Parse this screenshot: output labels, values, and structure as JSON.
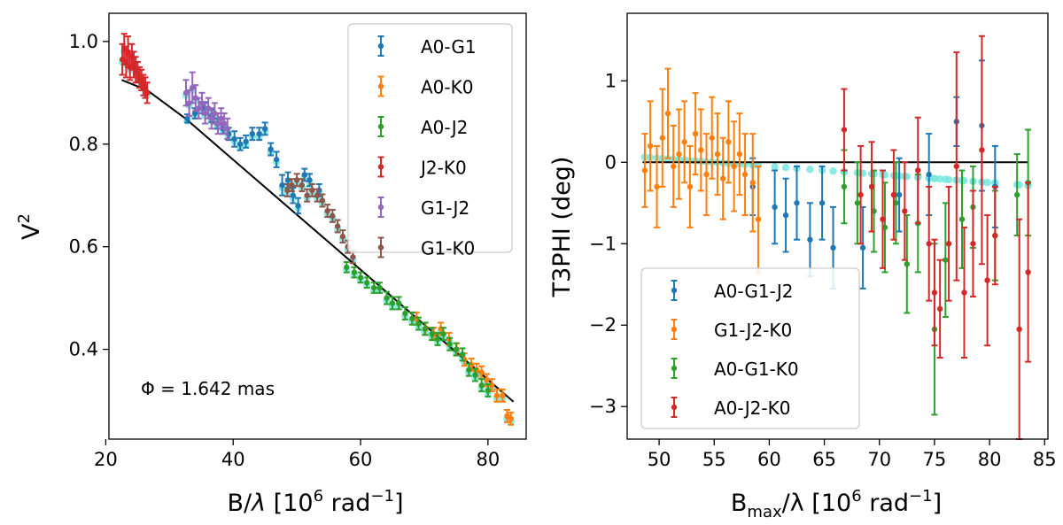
{
  "chart_data": [
    {
      "type": "scatter",
      "panel": "left",
      "xlabel_main": "B/",
      "xlabel_lambda": "λ",
      "xlabel_unit": " [10",
      "xlabel_exp": "6",
      "xlabel_tail": " rad",
      "xlabel_exp2": "−1",
      "xlabel_close": "]",
      "ylabel_main": "V",
      "ylabel_sup": "2",
      "xlim": [
        20.5,
        86
      ],
      "ylim": [
        0.225,
        1.055
      ],
      "xticks": [
        20,
        40,
        60,
        80
      ],
      "xtick_labels": [
        "20",
        "40",
        "60",
        "80"
      ],
      "yticks": [
        0.4,
        0.6,
        0.8,
        1.0
      ],
      "ytick_labels": [
        "0.4",
        "0.6",
        "0.8",
        "1.0"
      ],
      "legend_position": "top-right",
      "annotation": "Φ =  1.642 mas",
      "model_line": {
        "x": [
          22.5,
          26.5,
          32.5,
          84
        ],
        "y": [
          0.925,
          0.905,
          0.85,
          0.298
        ]
      },
      "series": [
        {
          "name": "A0-G1",
          "color": "#1f77b4",
          "points": [
            [
              32.8,
              0.85,
              0.008
            ],
            [
              34.0,
              0.86,
              0.01
            ],
            [
              35.5,
              0.87,
              0.012
            ],
            [
              36.6,
              0.855,
              0.012
            ],
            [
              37.5,
              0.84,
              0.01
            ],
            [
              38.4,
              0.83,
              0.01
            ],
            [
              39.3,
              0.82,
              0.012
            ],
            [
              40.2,
              0.81,
              0.015
            ],
            [
              41.1,
              0.8,
              0.012
            ],
            [
              42.0,
              0.805,
              0.012
            ],
            [
              43.0,
              0.82,
              0.012
            ],
            [
              44.1,
              0.82,
              0.012
            ],
            [
              45.0,
              0.83,
              0.012
            ],
            [
              45.9,
              0.79,
              0.012
            ],
            [
              46.8,
              0.77,
              0.015
            ],
            [
              47.7,
              0.72,
              0.02
            ],
            [
              48.6,
              0.73,
              0.015
            ],
            [
              49.4,
              0.7,
              0.015
            ],
            [
              50.2,
              0.68,
              0.015
            ],
            [
              51.2,
              0.74,
              0.012
            ],
            [
              52.0,
              0.73,
              0.012
            ],
            [
              53.5,
              0.71,
              0.012
            ]
          ]
        },
        {
          "name": "A0-K0",
          "color": "#ff7f0e",
          "points": [
            [
              68.8,
              0.46,
              0.012
            ],
            [
              70.2,
              0.44,
              0.012
            ],
            [
              71.5,
              0.43,
              0.012
            ],
            [
              72.6,
              0.44,
              0.012
            ],
            [
              73.9,
              0.42,
              0.012
            ],
            [
              75.1,
              0.4,
              0.012
            ],
            [
              76.3,
              0.38,
              0.012
            ],
            [
              77.4,
              0.37,
              0.012
            ],
            [
              78.2,
              0.36,
              0.012
            ],
            [
              79.0,
              0.355,
              0.012
            ],
            [
              79.8,
              0.34,
              0.012
            ],
            [
              80.6,
              0.33,
              0.012
            ],
            [
              81.4,
              0.31,
              0.012
            ],
            [
              82.3,
              0.31,
              0.012
            ],
            [
              83.0,
              0.27,
              0.012
            ],
            [
              83.6,
              0.265,
              0.012
            ]
          ]
        },
        {
          "name": "A0-J2",
          "color": "#2ca02c",
          "points": [
            [
              57.8,
              0.56,
              0.01
            ],
            [
              59.0,
              0.55,
              0.01
            ],
            [
              60.0,
              0.54,
              0.01
            ],
            [
              61.0,
              0.53,
              0.01
            ],
            [
              62.1,
              0.52,
              0.01
            ],
            [
              63.0,
              0.52,
              0.01
            ],
            [
              64.1,
              0.5,
              0.012
            ],
            [
              65.0,
              0.49,
              0.012
            ],
            [
              66.0,
              0.49,
              0.012
            ],
            [
              67.0,
              0.47,
              0.012
            ],
            [
              68.1,
              0.46,
              0.012
            ],
            [
              69.1,
              0.45,
              0.012
            ],
            [
              70.1,
              0.44,
              0.012
            ],
            [
              71.2,
              0.43,
              0.012
            ],
            [
              72.1,
              0.42,
              0.012
            ],
            [
              73.0,
              0.43,
              0.012
            ],
            [
              74.0,
              0.41,
              0.012
            ],
            [
              75.0,
              0.4,
              0.012
            ],
            [
              76.0,
              0.39,
              0.012
            ],
            [
              77.0,
              0.36,
              0.012
            ],
            [
              78.0,
              0.35,
              0.012
            ],
            [
              79.0,
              0.33,
              0.012
            ],
            [
              80.0,
              0.32,
              0.012
            ]
          ]
        },
        {
          "name": "J2-K0",
          "color": "#d62728",
          "points": [
            [
              22.6,
              0.965,
              0.03
            ],
            [
              22.9,
              0.985,
              0.03
            ],
            [
              23.2,
              0.96,
              0.03
            ],
            [
              23.5,
              0.98,
              0.03
            ],
            [
              23.8,
              0.95,
              0.025
            ],
            [
              24.1,
              0.97,
              0.025
            ],
            [
              24.4,
              0.955,
              0.025
            ],
            [
              24.7,
              0.945,
              0.025
            ],
            [
              25.0,
              0.94,
              0.02
            ],
            [
              25.3,
              0.93,
              0.02
            ],
            [
              25.6,
              0.925,
              0.02
            ],
            [
              25.9,
              0.915,
              0.02
            ],
            [
              26.2,
              0.91,
              0.02
            ],
            [
              26.5,
              0.9,
              0.02
            ]
          ]
        },
        {
          "name": "G1-J2",
          "color": "#9467bd",
          "points": [
            [
              32.6,
              0.9,
              0.025
            ],
            [
              33.1,
              0.88,
              0.025
            ],
            [
              33.6,
              0.91,
              0.03
            ],
            [
              34.1,
              0.89,
              0.025
            ],
            [
              34.6,
              0.87,
              0.02
            ],
            [
              35.1,
              0.88,
              0.02
            ],
            [
              35.6,
              0.86,
              0.02
            ],
            [
              36.1,
              0.87,
              0.02
            ],
            [
              36.6,
              0.85,
              0.02
            ],
            [
              37.1,
              0.86,
              0.02
            ],
            [
              37.6,
              0.84,
              0.02
            ],
            [
              38.1,
              0.85,
              0.02
            ],
            [
              38.6,
              0.84,
              0.02
            ],
            [
              39.1,
              0.83,
              0.02
            ]
          ]
        },
        {
          "name": "G1-K0",
          "color": "#8c564b",
          "points": [
            [
              48.5,
              0.71,
              0.012
            ],
            [
              49.2,
              0.72,
              0.012
            ],
            [
              50.0,
              0.73,
              0.012
            ],
            [
              50.8,
              0.72,
              0.012
            ],
            [
              51.6,
              0.7,
              0.012
            ],
            [
              52.4,
              0.71,
              0.012
            ],
            [
              53.2,
              0.7,
              0.012
            ],
            [
              54.0,
              0.69,
              0.012
            ],
            [
              54.8,
              0.67,
              0.012
            ],
            [
              55.6,
              0.66,
              0.012
            ],
            [
              56.4,
              0.64,
              0.012
            ],
            [
              57.2,
              0.62,
              0.012
            ],
            [
              58.0,
              0.6,
              0.012
            ],
            [
              58.8,
              0.58,
              0.012
            ]
          ]
        }
      ]
    },
    {
      "type": "scatter",
      "panel": "right",
      "xlabel_main": "B",
      "xlabel_sub": "max",
      "xlabel_lambda": "/λ",
      "xlabel_unit": " [10",
      "xlabel_exp": "6",
      "xlabel_tail": " rad",
      "xlabel_exp2": "−1",
      "xlabel_close": "]",
      "ylabel": "T3PHI (deg)",
      "xlim": [
        47.1,
        85.3
      ],
      "ylim": [
        -3.4,
        1.83
      ],
      "xticks": [
        50,
        55,
        60,
        65,
        70,
        75,
        80,
        85
      ],
      "xtick_labels": [
        "50",
        "55",
        "60",
        "65",
        "70",
        "75",
        "80",
        "85"
      ],
      "yticks": [
        -3,
        -2,
        -1,
        0,
        1
      ],
      "ytick_labels": [
        "−3",
        "−2",
        "−1",
        "0",
        "1"
      ],
      "legend_position": "bottom-left",
      "zero_line": {
        "x": [
          48.5,
          83.5
        ],
        "y": [
          0,
          0
        ]
      },
      "series": [
        {
          "name": "A0-G1-J2",
          "color": "#1f77b4",
          "points": [
            [
              58.5,
              -0.3,
              0.35
            ],
            [
              60.5,
              -0.55,
              0.45
            ],
            [
              61.5,
              -0.65,
              0.45
            ],
            [
              62.5,
              -0.5,
              0.45
            ],
            [
              63.7,
              -0.95,
              0.45
            ],
            [
              64.8,
              -0.5,
              0.45
            ],
            [
              65.8,
              -1.05,
              0.5
            ],
            [
              68.5,
              -1.05,
              0.5
            ],
            [
              71.8,
              -0.4,
              0.45
            ],
            [
              74.5,
              -0.15,
              0.5
            ],
            [
              77.0,
              0.5,
              0.3
            ],
            [
              79.3,
              0.45,
              0.8
            ],
            [
              80.5,
              -0.3,
              0.5
            ]
          ]
        },
        {
          "name": "G1-J2-K0",
          "color": "#ff7f0e",
          "points": [
            [
              48.7,
              -0.1,
              0.45
            ],
            [
              49.2,
              0.2,
              0.55
            ],
            [
              49.8,
              -0.3,
              0.5
            ],
            [
              50.3,
              0.3,
              0.6
            ],
            [
              50.8,
              0.6,
              0.55
            ],
            [
              51.3,
              -0.05,
              0.5
            ],
            [
              51.8,
              0.1,
              0.55
            ],
            [
              52.3,
              0.25,
              0.5
            ],
            [
              52.8,
              -0.3,
              0.5
            ],
            [
              53.3,
              0.35,
              0.5
            ],
            [
              53.8,
              0.15,
              0.5
            ],
            [
              54.3,
              -0.15,
              0.5
            ],
            [
              54.8,
              0.3,
              0.5
            ],
            [
              55.3,
              0.1,
              0.5
            ],
            [
              55.8,
              -0.2,
              0.5
            ],
            [
              56.3,
              0.25,
              0.5
            ],
            [
              56.8,
              -0.05,
              0.55
            ],
            [
              57.3,
              0.1,
              0.5
            ],
            [
              57.8,
              -0.15,
              0.5
            ],
            [
              58.5,
              -0.25,
              0.6
            ],
            [
              59.0,
              -0.7,
              0.65
            ]
          ]
        },
        {
          "name": "A0-G1-K0",
          "color": "#2ca02c",
          "points": [
            [
              66.8,
              -0.3,
              0.45
            ],
            [
              68.0,
              -0.5,
              0.5
            ],
            [
              69.5,
              -0.6,
              0.5
            ],
            [
              70.5,
              -0.8,
              0.55
            ],
            [
              71.5,
              -0.5,
              0.5
            ],
            [
              72.5,
              -1.25,
              0.6
            ],
            [
              73.5,
              -0.75,
              0.6
            ],
            [
              75.0,
              -2.05,
              1.05
            ],
            [
              76.0,
              -1.2,
              0.7
            ],
            [
              77.5,
              -0.7,
              0.6
            ],
            [
              78.5,
              -0.55,
              0.5
            ],
            [
              80.5,
              -0.9,
              0.55
            ],
            [
              82.5,
              -0.4,
              0.5
            ],
            [
              83.5,
              -0.25,
              0.65
            ]
          ]
        },
        {
          "name": "A0-J2-K0",
          "color": "#d62728",
          "points": [
            [
              66.8,
              0.4,
              0.5
            ],
            [
              68.3,
              -0.4,
              0.6
            ],
            [
              69.3,
              -0.3,
              0.55
            ],
            [
              70.3,
              -0.7,
              0.6
            ],
            [
              71.3,
              -0.4,
              0.55
            ],
            [
              72.3,
              -0.6,
              0.6
            ],
            [
              73.5,
              -0.1,
              0.65
            ],
            [
              74.5,
              -1.0,
              0.7
            ],
            [
              75.0,
              -1.6,
              0.65
            ],
            [
              75.5,
              -1.8,
              0.6
            ],
            [
              76.3,
              -1.0,
              0.7
            ],
            [
              77.0,
              -0.05,
              1.4
            ],
            [
              77.7,
              -1.6,
              0.8
            ],
            [
              78.5,
              -1.0,
              0.65
            ],
            [
              79.3,
              0.15,
              1.4
            ],
            [
              79.8,
              -1.45,
              0.8
            ],
            [
              80.5,
              -0.9,
              0.6
            ],
            [
              82.7,
              -2.05,
              1.35
            ],
            [
              83.5,
              -1.35,
              1.1
            ]
          ]
        }
      ]
    }
  ]
}
